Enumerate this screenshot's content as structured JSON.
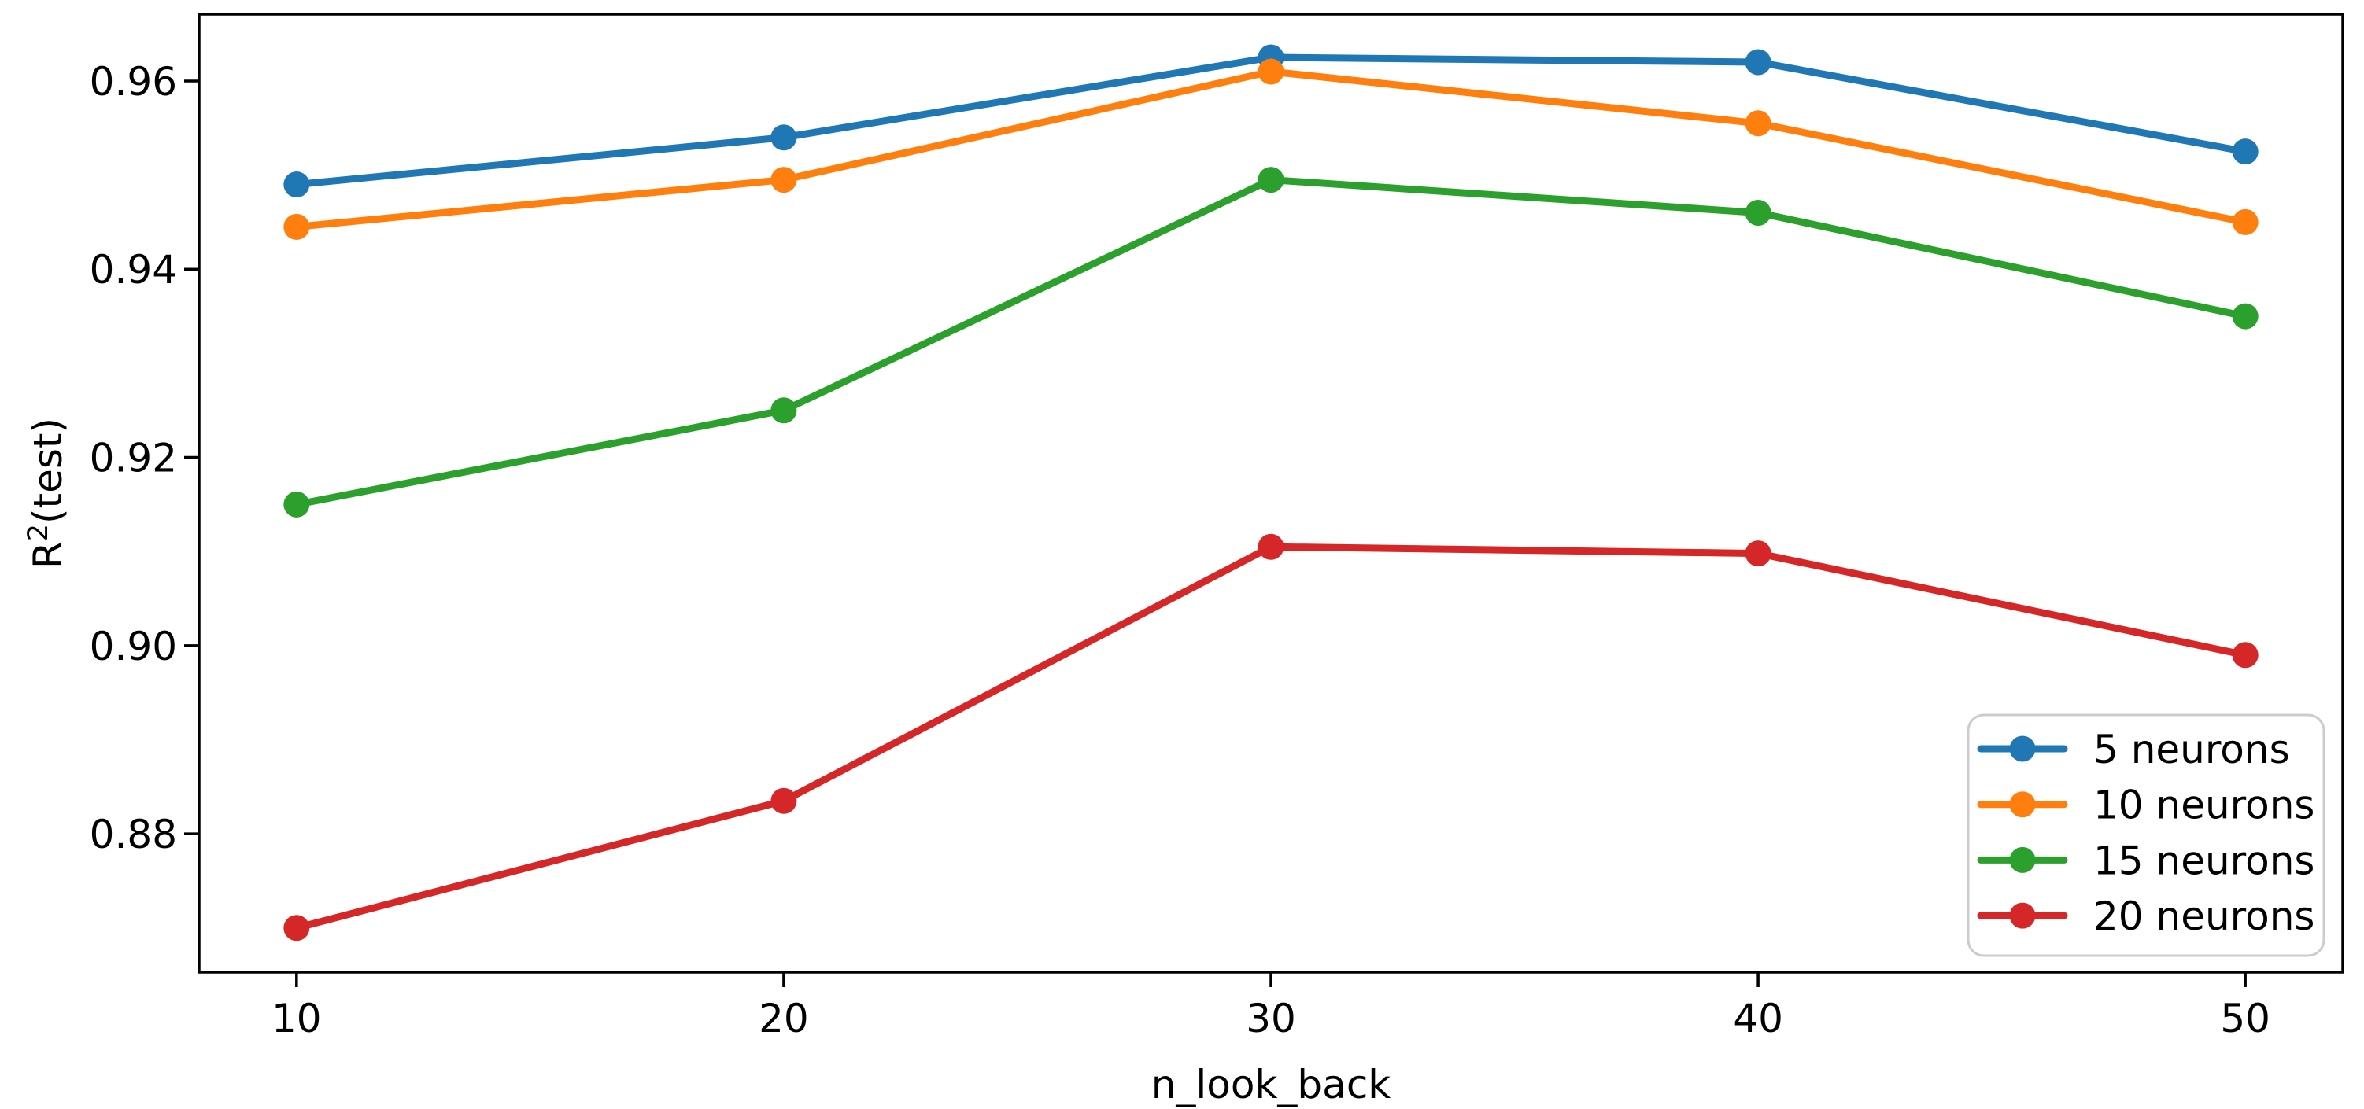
{
  "chart_data": {
    "type": "line",
    "title": "",
    "xlabel": "n_look_back",
    "ylabel": "R²(test)",
    "x": [
      10,
      20,
      30,
      40,
      50
    ],
    "series": [
      {
        "name": "5 neurons",
        "color": "#1f77b4",
        "values": [
          0.949,
          0.954,
          0.9625,
          0.962,
          0.9525
        ]
      },
      {
        "name": "10 neurons",
        "color": "#ff7f0e",
        "values": [
          0.9445,
          0.9495,
          0.961,
          0.9555,
          0.945
        ]
      },
      {
        "name": "15 neurons",
        "color": "#2ca02c",
        "values": [
          0.915,
          0.925,
          0.9495,
          0.946,
          0.935
        ]
      },
      {
        "name": "20 neurons",
        "color": "#d62728",
        "values": [
          0.87,
          0.8835,
          0.9105,
          0.9098,
          0.899
        ]
      }
    ],
    "xticks": [
      10,
      20,
      30,
      40,
      50
    ],
    "yticks": [
      0.88,
      0.9,
      0.92,
      0.94,
      0.96
    ],
    "xlim": [
      8.0,
      52.0
    ],
    "ylim": [
      0.8653,
      0.9671
    ],
    "grid": false,
    "legend_position": "lower right",
    "marker": "o",
    "axis_color": "#000000",
    "legend_border_color": "#cccccc",
    "legend_background": "#ffffff"
  }
}
